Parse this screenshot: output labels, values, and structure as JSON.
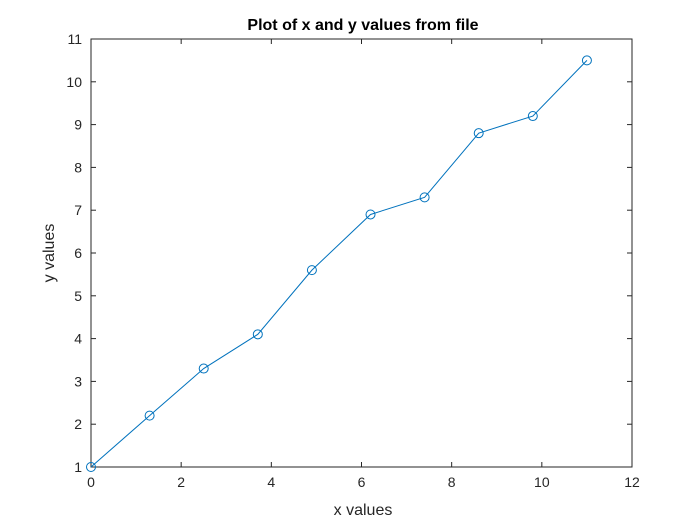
{
  "chart_data": {
    "type": "line",
    "title": "Plot of x and y values from file",
    "xlabel": "x values",
    "ylabel": "y values",
    "xlim": [
      0,
      12
    ],
    "ylim": [
      1,
      11
    ],
    "xticks": [
      0,
      2,
      4,
      6,
      8,
      10,
      12
    ],
    "yticks": [
      1,
      2,
      3,
      4,
      5,
      6,
      7,
      8,
      9,
      10,
      11
    ],
    "grid": false,
    "marker": "circle",
    "series_color": "#0072BD",
    "series": [
      {
        "x": [
          0,
          1.3,
          2.5,
          3.7,
          4.9,
          6.2,
          7.4,
          8.6,
          9.8,
          11.0
        ],
        "y": [
          1.0,
          2.2,
          3.3,
          4.1,
          5.6,
          6.9,
          7.3,
          8.8,
          9.2,
          10.5
        ]
      }
    ]
  }
}
